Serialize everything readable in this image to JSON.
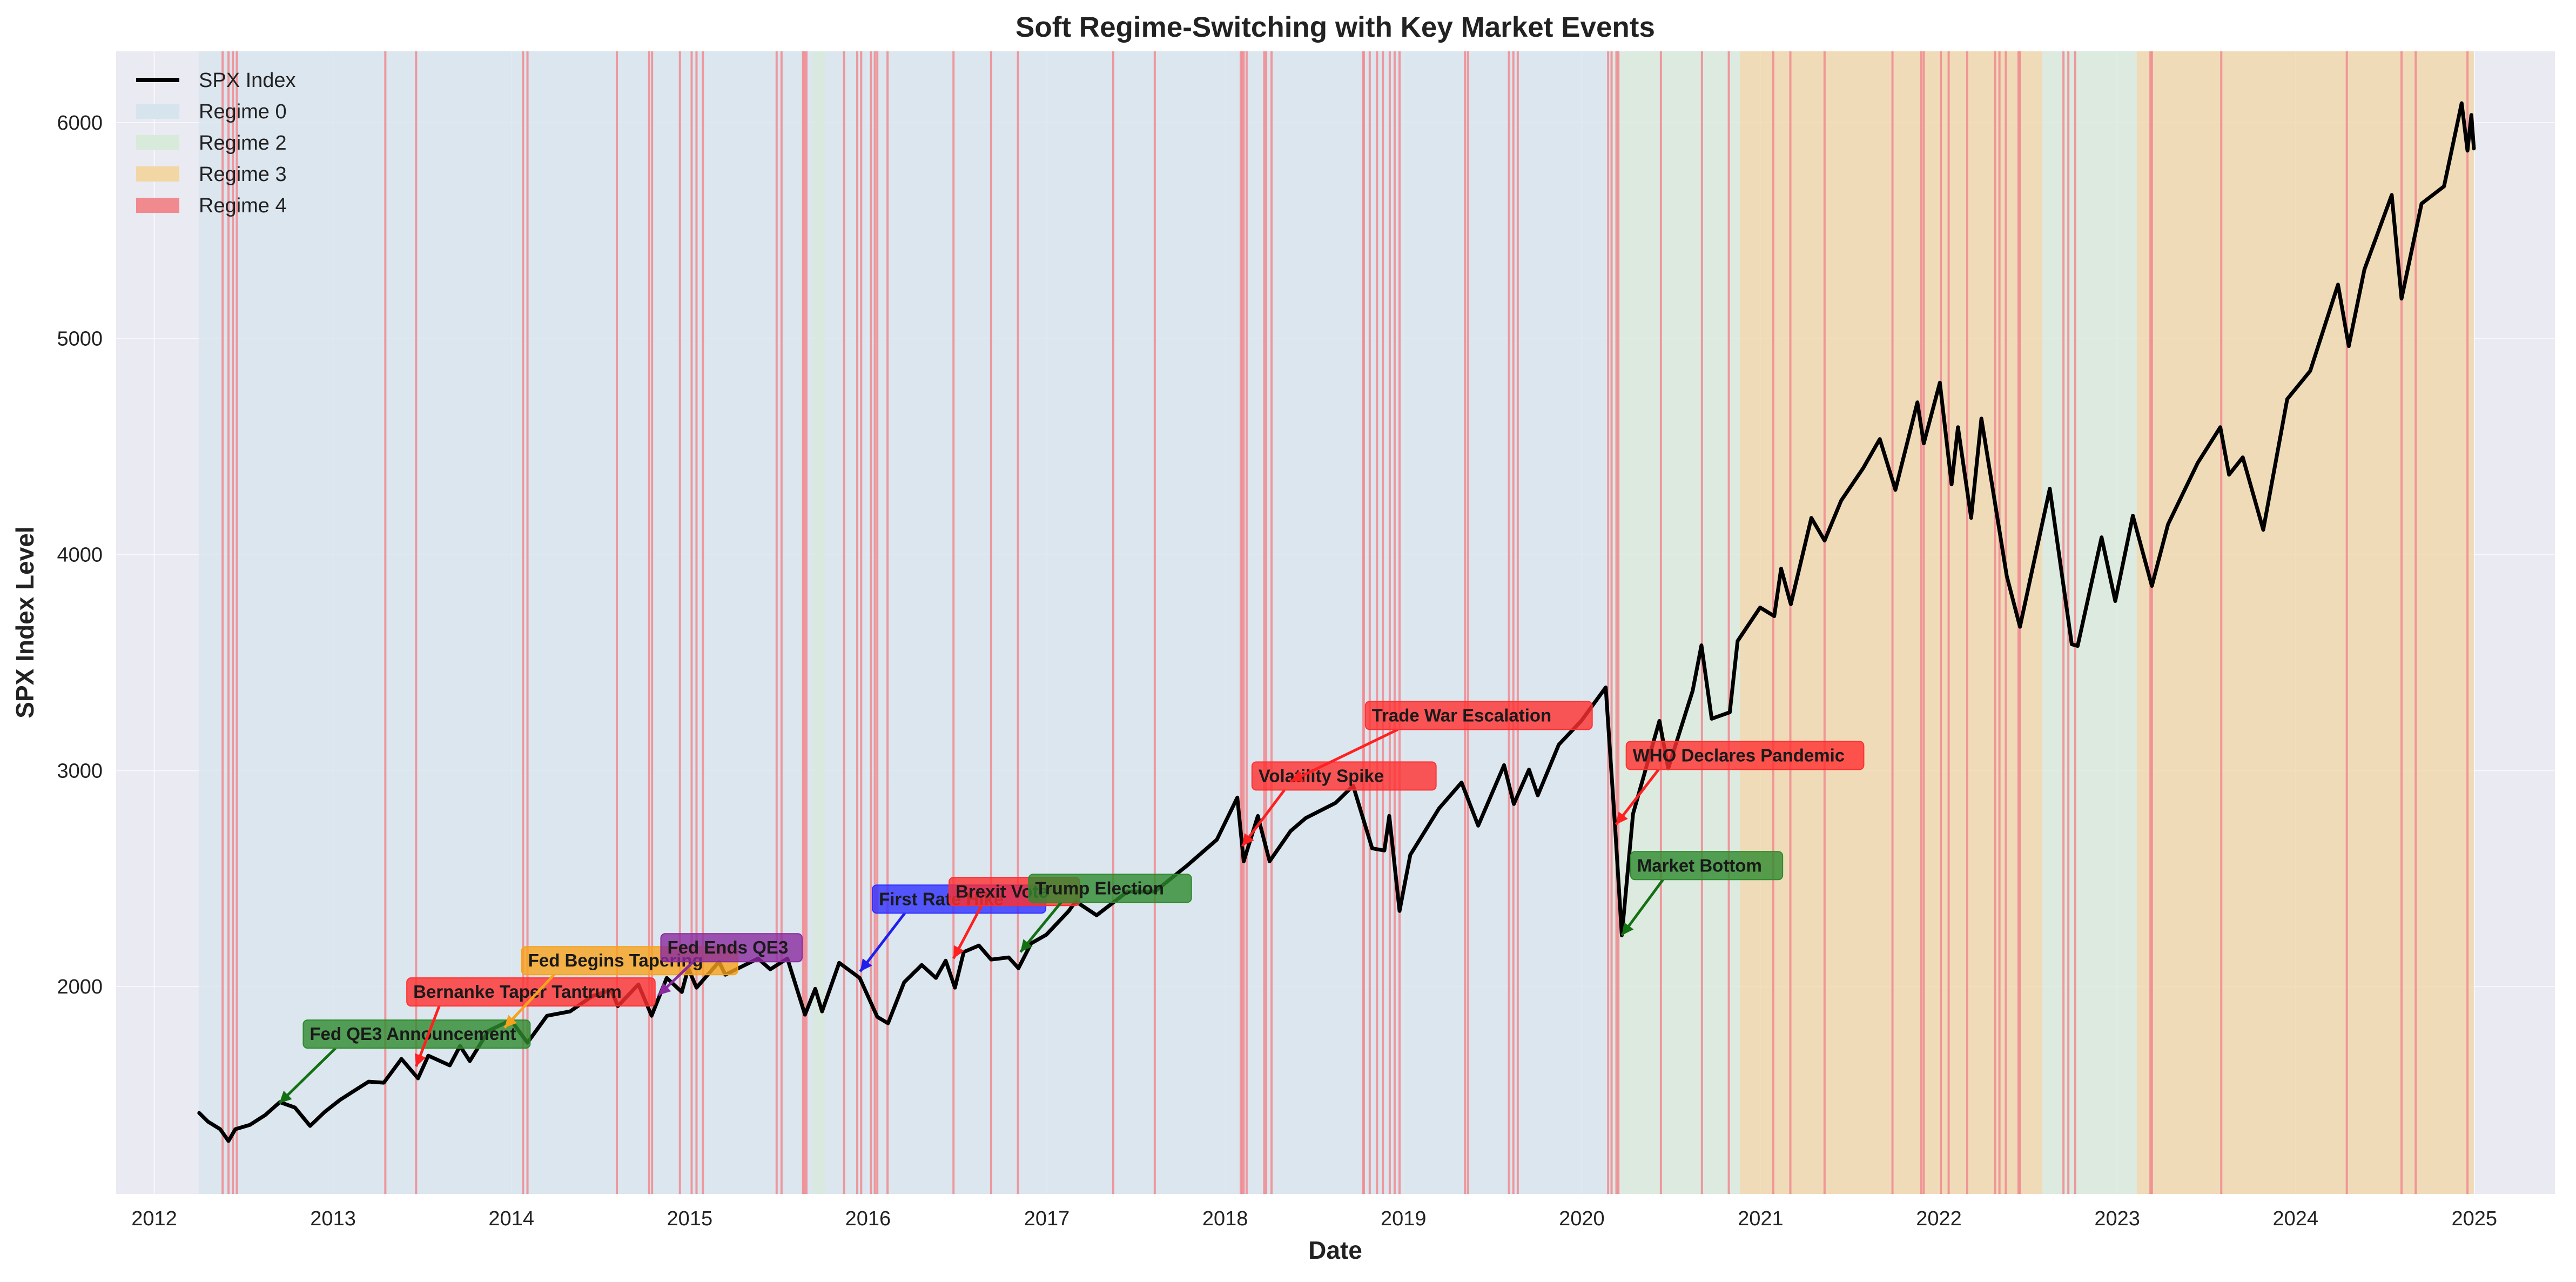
{
  "chart_data": {
    "type": "line",
    "title": "Soft Regime-Switching with Key Market Events",
    "xlabel": "Date",
    "ylabel": "SPX Index Level",
    "x_ticks": [
      "2012",
      "2013",
      "2014",
      "2015",
      "2016",
      "2017",
      "2018",
      "2019",
      "2020",
      "2021",
      "2022",
      "2023",
      "2024",
      "2025"
    ],
    "y_ticks": [
      2000,
      3000,
      4000,
      5000,
      6000
    ],
    "xlim": [
      "2011-10-15",
      "2025-06-15"
    ],
    "ylim": [
      1040,
      6330
    ],
    "grid": true,
    "legend_position": "top-left",
    "legend": [
      {
        "label": "SPX Index",
        "kind": "line",
        "color": "#000000"
      },
      {
        "label": "Regime 0",
        "kind": "patch",
        "color": "#d6e4ee"
      },
      {
        "label": "Regime 2",
        "kind": "patch",
        "color": "#d8ead9"
      },
      {
        "label": "Regime 3",
        "kind": "patch",
        "color": "#f2d6a4"
      },
      {
        "label": "Regime 4",
        "kind": "patch",
        "color": "#f08a8f"
      }
    ],
    "regime_bands": [
      {
        "regime": 0,
        "start": "2012-04-01",
        "end": "2020-03-01"
      },
      {
        "regime": 2,
        "start": "2015-09-10",
        "end": "2015-10-05"
      },
      {
        "regime": 2,
        "start": "2020-03-01",
        "end": "2020-11-20"
      },
      {
        "regime": 3,
        "start": "2020-11-20",
        "end": "2022-08-01"
      },
      {
        "regime": 2,
        "start": "2022-08-01",
        "end": "2023-02-10"
      },
      {
        "regime": 3,
        "start": "2023-02-10",
        "end": "2024-12-31"
      }
    ],
    "regime4_spikes": [
      "2012-05-20",
      "2012-06-01",
      "2012-06-10",
      "2012-06-18",
      "2013-04-18",
      "2013-06-20",
      "2014-01-25",
      "2014-02-03",
      "2014-08-05",
      "2014-10-10",
      "2014-10-16",
      "2014-12-12",
      "2015-01-05",
      "2015-01-15",
      "2015-01-28",
      "2015-06-28",
      "2015-07-08",
      "2015-08-21",
      "2015-08-24",
      "2015-08-28",
      "2015-11-13",
      "2015-12-10",
      "2015-12-18",
      "2016-01-07",
      "2016-01-15",
      "2016-01-20",
      "2016-02-10",
      "2016-06-24",
      "2016-09-09",
      "2016-11-03",
      "2017-05-17",
      "2017-08-10",
      "2018-02-02",
      "2018-02-05",
      "2018-02-08",
      "2018-02-14",
      "2018-03-22",
      "2018-03-26",
      "2018-04-06",
      "2018-10-10",
      "2018-10-12",
      "2018-10-24",
      "2018-11-08",
      "2018-11-20",
      "2018-12-04",
      "2018-12-14",
      "2018-12-24",
      "2019-05-07",
      "2019-05-13",
      "2019-08-05",
      "2019-08-14",
      "2019-08-23",
      "2020-02-24",
      "2020-03-02",
      "2020-03-12",
      "2020-03-16",
      "2020-06-11",
      "2020-09-03",
      "2020-10-28",
      "2021-01-27",
      "2021-03-03",
      "2021-05-12",
      "2021-09-28",
      "2021-11-26",
      "2021-12-01",
      "2022-01-05",
      "2022-01-21",
      "2022-02-28",
      "2022-04-26",
      "2022-05-05",
      "2022-05-18",
      "2022-06-13",
      "2022-06-16",
      "2022-09-13",
      "2022-09-23",
      "2022-10-07",
      "2023-03-10",
      "2023-03-13",
      "2023-08-02",
      "2024-04-15",
      "2024-08-05",
      "2024-09-03",
      "2024-12-18"
    ],
    "series": [
      {
        "name": "SPX Index",
        "points": [
          [
            "2012-04-02",
            1415
          ],
          [
            "2012-04-20",
            1375
          ],
          [
            "2012-05-15",
            1340
          ],
          [
            "2012-06-01",
            1285
          ],
          [
            "2012-06-15",
            1340
          ],
          [
            "2012-07-15",
            1360
          ],
          [
            "2012-08-15",
            1405
          ],
          [
            "2012-09-14",
            1465
          ],
          [
            "2012-10-15",
            1440
          ],
          [
            "2012-11-15",
            1355
          ],
          [
            "2012-12-15",
            1420
          ],
          [
            "2013-01-15",
            1475
          ],
          [
            "2013-02-15",
            1520
          ],
          [
            "2013-03-15",
            1560
          ],
          [
            "2013-04-15",
            1555
          ],
          [
            "2013-05-21",
            1665
          ],
          [
            "2013-06-24",
            1575
          ],
          [
            "2013-07-15",
            1680
          ],
          [
            "2013-08-28",
            1635
          ],
          [
            "2013-09-18",
            1725
          ],
          [
            "2013-10-08",
            1655
          ],
          [
            "2013-11-15",
            1795
          ],
          [
            "2013-12-31",
            1845
          ],
          [
            "2014-02-03",
            1740
          ],
          [
            "2014-03-15",
            1865
          ],
          [
            "2014-05-01",
            1885
          ],
          [
            "2014-06-15",
            1955
          ],
          [
            "2014-07-24",
            1985
          ],
          [
            "2014-08-07",
            1910
          ],
          [
            "2014-09-18",
            2010
          ],
          [
            "2014-10-15",
            1865
          ],
          [
            "2014-11-15",
            2040
          ],
          [
            "2014-12-16",
            1975
          ],
          [
            "2014-12-29",
            2085
          ],
          [
            "2015-01-15",
            1995
          ],
          [
            "2015-03-02",
            2115
          ],
          [
            "2015-03-15",
            2055
          ],
          [
            "2015-05-21",
            2130
          ],
          [
            "2015-06-15",
            2080
          ],
          [
            "2015-07-20",
            2130
          ],
          [
            "2015-08-25",
            1870
          ],
          [
            "2015-09-15",
            1990
          ],
          [
            "2015-09-29",
            1885
          ],
          [
            "2015-11-03",
            2110
          ],
          [
            "2015-12-15",
            2040
          ],
          [
            "2016-01-20",
            1860
          ],
          [
            "2016-02-11",
            1830
          ],
          [
            "2016-03-15",
            2020
          ],
          [
            "2016-04-20",
            2100
          ],
          [
            "2016-05-19",
            2040
          ],
          [
            "2016-06-08",
            2120
          ],
          [
            "2016-06-27",
            1995
          ],
          [
            "2016-07-15",
            2160
          ],
          [
            "2016-08-15",
            2190
          ],
          [
            "2016-09-09",
            2125
          ],
          [
            "2016-10-15",
            2135
          ],
          [
            "2016-11-04",
            2085
          ],
          [
            "2016-11-30",
            2200
          ],
          [
            "2016-12-31",
            2240
          ],
          [
            "2017-02-15",
            2350
          ],
          [
            "2017-03-01",
            2395
          ],
          [
            "2017-04-13",
            2330
          ],
          [
            "2017-06-15",
            2440
          ],
          [
            "2017-08-10",
            2440
          ],
          [
            "2017-10-15",
            2560
          ],
          [
            "2017-12-15",
            2680
          ],
          [
            "2018-01-26",
            2875
          ],
          [
            "2018-02-08",
            2580
          ],
          [
            "2018-03-09",
            2790
          ],
          [
            "2018-04-02",
            2580
          ],
          [
            "2018-05-15",
            2720
          ],
          [
            "2018-06-15",
            2780
          ],
          [
            "2018-08-15",
            2850
          ],
          [
            "2018-09-20",
            2930
          ],
          [
            "2018-10-29",
            2640
          ],
          [
            "2018-11-23",
            2630
          ],
          [
            "2018-12-03",
            2790
          ],
          [
            "2018-12-24",
            2350
          ],
          [
            "2019-01-15",
            2610
          ],
          [
            "2019-03-15",
            2825
          ],
          [
            "2019-04-30",
            2945
          ],
          [
            "2019-06-03",
            2745
          ],
          [
            "2019-07-26",
            3025
          ],
          [
            "2019-08-15",
            2845
          ],
          [
            "2019-09-15",
            3005
          ],
          [
            "2019-10-03",
            2885
          ],
          [
            "2019-11-15",
            3120
          ],
          [
            "2019-12-31",
            3230
          ],
          [
            "2020-02-19",
            3385
          ],
          [
            "2020-03-09",
            2750
          ],
          [
            "2020-03-23",
            2237
          ],
          [
            "2020-04-15",
            2800
          ],
          [
            "2020-06-08",
            3230
          ],
          [
            "2020-06-26",
            3010
          ],
          [
            "2020-08-15",
            3370
          ],
          [
            "2020-09-02",
            3580
          ],
          [
            "2020-09-23",
            3240
          ],
          [
            "2020-10-30",
            3270
          ],
          [
            "2020-11-15",
            3600
          ],
          [
            "2020-12-31",
            3755
          ],
          [
            "2021-01-29",
            3715
          ],
          [
            "2021-02-12",
            3935
          ],
          [
            "2021-03-04",
            3770
          ],
          [
            "2021-04-15",
            4170
          ],
          [
            "2021-05-12",
            4065
          ],
          [
            "2021-06-15",
            4250
          ],
          [
            "2021-07-30",
            4400
          ],
          [
            "2021-09-02",
            4535
          ],
          [
            "2021-10-04",
            4300
          ],
          [
            "2021-11-18",
            4705
          ],
          [
            "2021-12-01",
            4515
          ],
          [
            "2022-01-03",
            4796
          ],
          [
            "2022-01-27",
            4325
          ],
          [
            "2022-02-09",
            4590
          ],
          [
            "2022-03-08",
            4170
          ],
          [
            "2022-03-29",
            4630
          ],
          [
            "2022-05-20",
            3900
          ],
          [
            "2022-06-16",
            3666
          ],
          [
            "2022-08-16",
            4305
          ],
          [
            "2022-09-30",
            3585
          ],
          [
            "2022-10-12",
            3577
          ],
          [
            "2022-11-30",
            4080
          ],
          [
            "2022-12-28",
            3785
          ],
          [
            "2023-02-02",
            4180
          ],
          [
            "2023-03-13",
            3855
          ],
          [
            "2023-04-15",
            4140
          ],
          [
            "2023-06-15",
            4425
          ],
          [
            "2023-07-31",
            4590
          ],
          [
            "2023-08-18",
            4370
          ],
          [
            "2023-09-15",
            4450
          ],
          [
            "2023-10-27",
            4115
          ],
          [
            "2023-12-15",
            4720
          ],
          [
            "2024-01-31",
            4850
          ],
          [
            "2024-03-28",
            5250
          ],
          [
            "2024-04-19",
            4965
          ],
          [
            "2024-05-21",
            5320
          ],
          [
            "2024-07-16",
            5665
          ],
          [
            "2024-08-05",
            5185
          ],
          [
            "2024-09-15",
            5625
          ],
          [
            "2024-10-31",
            5705
          ],
          [
            "2024-12-06",
            6090
          ],
          [
            "2024-12-18",
            5870
          ],
          [
            "2024-12-26",
            6035
          ],
          [
            "2024-12-31",
            5880
          ]
        ]
      }
    ],
    "annotations": [
      {
        "text": "Fed QE3 Announcement",
        "date": "2012-09-13",
        "value": 1460,
        "label_date": "2012-11-01",
        "label_value": 1780,
        "color": "#2e8b2e",
        "arrow": "#137013"
      },
      {
        "text": "Bernanke Taper Tantrum",
        "date": "2013-06-20",
        "value": 1630,
        "label_date": "2013-06-01",
        "label_value": 1975,
        "color": "#ff3030",
        "arrow": "#ff2020"
      },
      {
        "text": "Fed Begins Tapering",
        "date": "2013-12-18",
        "value": 1810,
        "label_date": "2014-01-22",
        "label_value": 2120,
        "color": "#f7a21c",
        "arrow": "#f7a21c"
      },
      {
        "text": "Fed Ends QE3",
        "date": "2014-10-29",
        "value": 1960,
        "label_date": "2014-11-03",
        "label_value": 2180,
        "color": "#8a2a9e",
        "arrow": "#8a2a9e"
      },
      {
        "text": "First Rate Hike",
        "date": "2015-12-16",
        "value": 2070,
        "label_date": "2016-01-10",
        "label_value": 2405,
        "color": "#3030ff",
        "arrow": "#2020ee"
      },
      {
        "text": "Brexit Vote",
        "date": "2016-06-24",
        "value": 2130,
        "label_date": "2016-06-15",
        "label_value": 2440,
        "color": "#ff3030",
        "arrow": "#ff2020"
      },
      {
        "text": "Trump Election",
        "date": "2016-11-08",
        "value": 2160,
        "label_date": "2016-11-25",
        "label_value": 2455,
        "color": "#2e8b2e",
        "arrow": "#137013"
      },
      {
        "text": "Volatility Spike",
        "date": "2018-02-05",
        "value": 2650,
        "label_date": "2018-02-25",
        "label_value": 2975,
        "color": "#ff3030",
        "arrow": "#ff2020"
      },
      {
        "text": "Trade War Escalation",
        "date": "2018-05-15",
        "value": 2950,
        "label_date": "2018-10-15",
        "label_value": 3255,
        "color": "#ff3030",
        "arrow": "#ff2020"
      },
      {
        "text": "WHO Declares Pandemic",
        "date": "2020-03-11",
        "value": 2750,
        "label_date": "2020-04-01",
        "label_value": 3070,
        "color": "#ff3030",
        "arrow": "#ff2020"
      },
      {
        "text": "Market Bottom",
        "date": "2020-03-23",
        "value": 2237,
        "label_date": "2020-04-10",
        "label_value": 2560,
        "color": "#2e8b2e",
        "arrow": "#137013"
      }
    ]
  }
}
